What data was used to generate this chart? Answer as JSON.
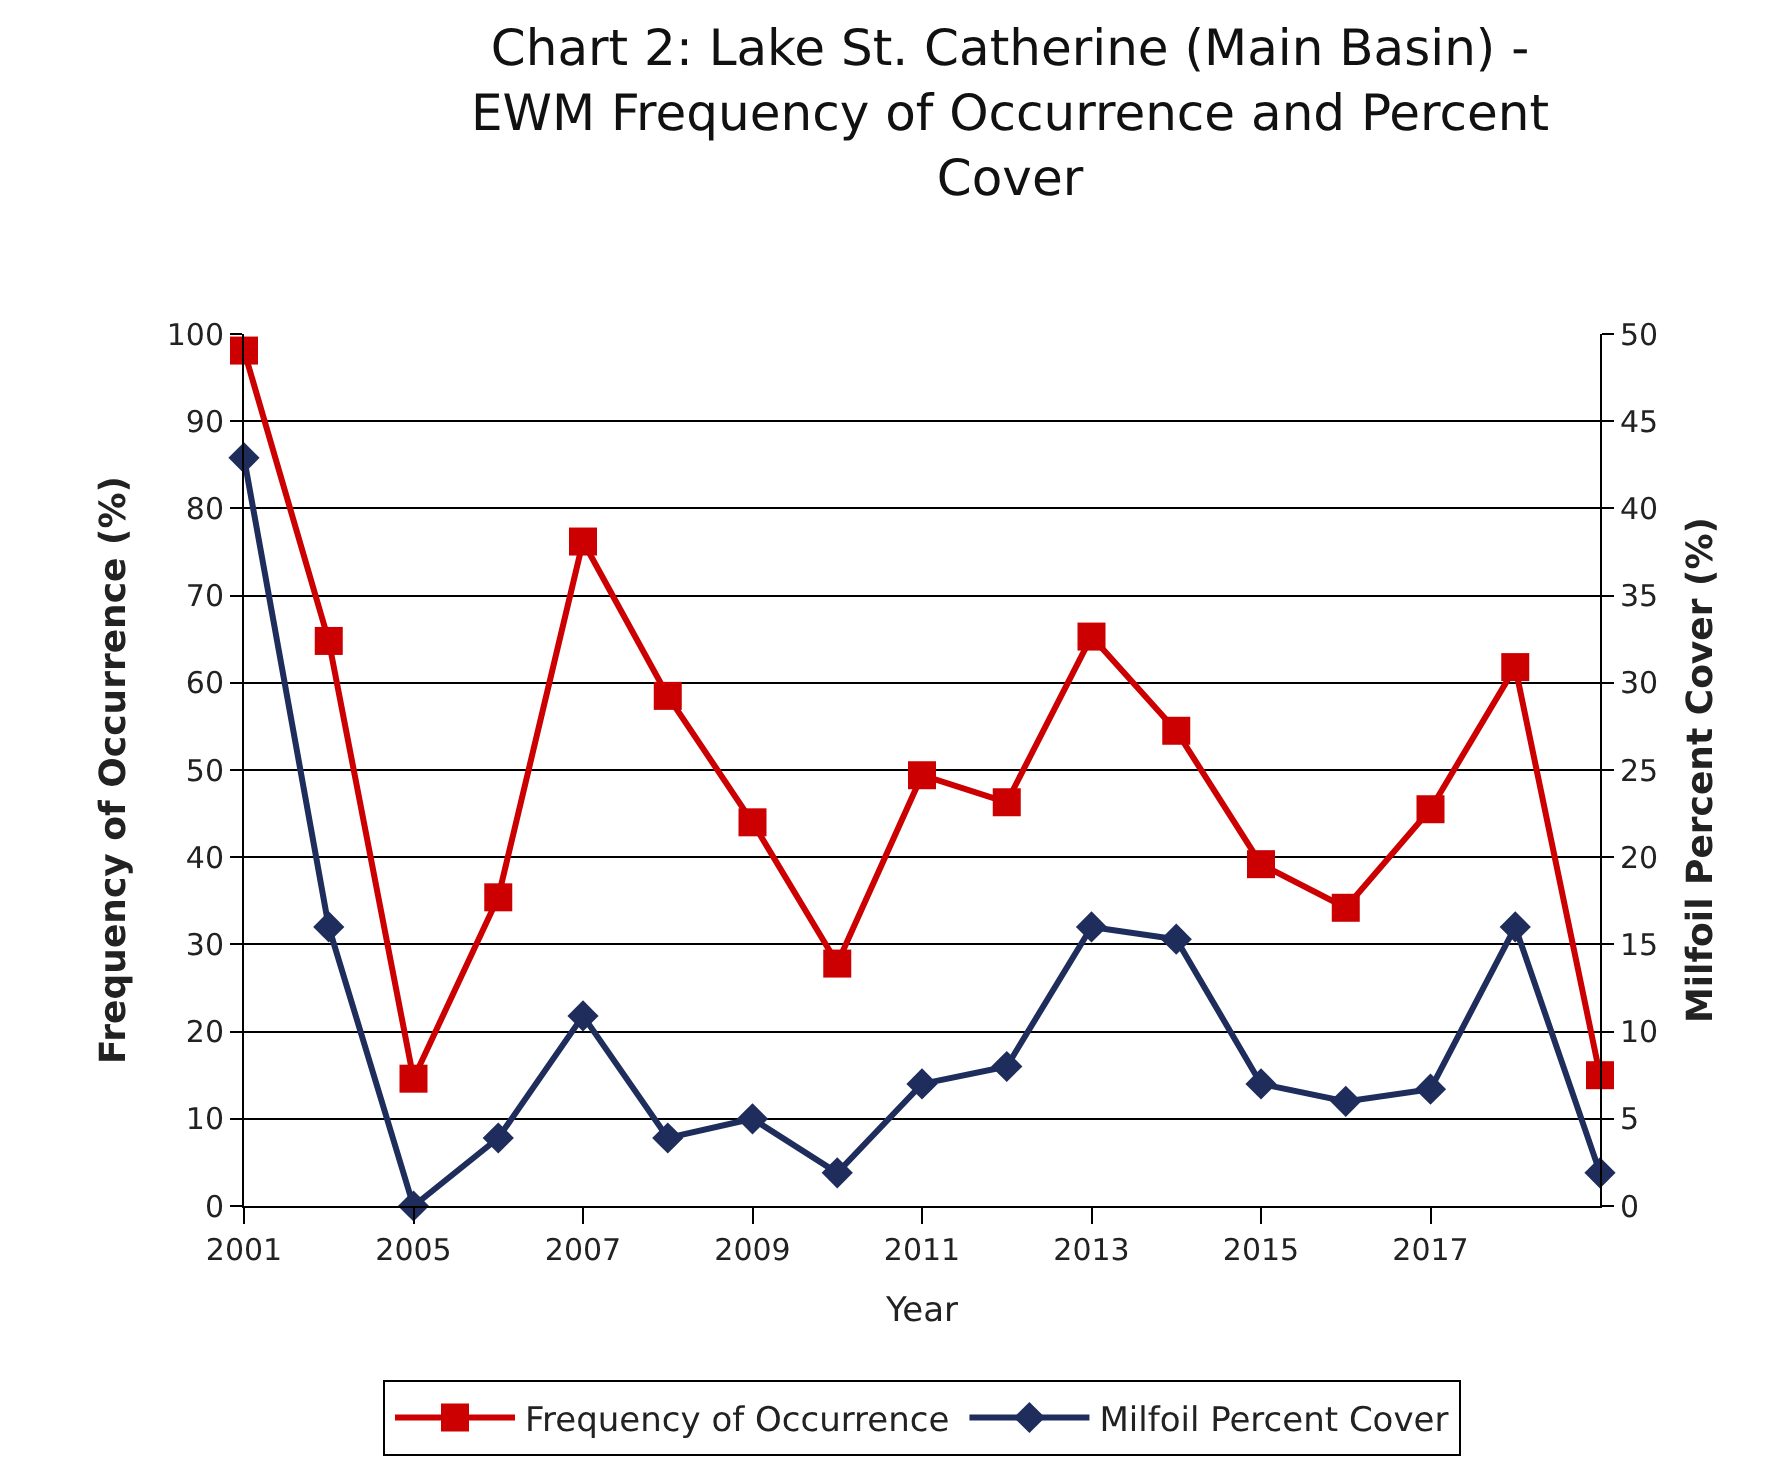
{
  "chart_data": {
    "type": "line",
    "title": "Chart 2: Lake St. Catherine (Main Basin) - EWM Frequency of Occurrence and Percent Cover",
    "xlabel": "Year",
    "ylabel": "Frequency of Occurrence (%)",
    "y2label": "Milfoil Percent Cover (%)",
    "categories": [
      "2001",
      null,
      "2005",
      null,
      "2007",
      null,
      "2009",
      null,
      "2011",
      null,
      "2013",
      null,
      "2015",
      null,
      "2017",
      null,
      null
    ],
    "series": [
      {
        "name": "Frequency of Occurrence",
        "color": "#cc0000",
        "marker": "square",
        "values": [
          98.1,
          64.8,
          14.6,
          35.4,
          76.2,
          58.5,
          44.0,
          27.8,
          49.4,
          46.3,
          65.3,
          54.5,
          39.2,
          34.2,
          45.5,
          61.8,
          15.0
        ]
      },
      {
        "name": "Milfoil Percent Cover",
        "color": "#1f2d5c",
        "marker": "diamond",
        "axis": "y2",
        "values": [
          42.9,
          16.0,
          0,
          3.9,
          10.9,
          3.9,
          5.0,
          1.9,
          7.0,
          8.0,
          16.0,
          15.3,
          7.0,
          6.0,
          6.7,
          16.0,
          1.9
        ]
      }
    ],
    "ylim": [
      0,
      100
    ],
    "yticks": [
      0,
      10,
      20,
      30,
      40,
      50,
      60,
      70,
      80,
      90,
      100
    ],
    "y2lim": [
      0,
      50
    ],
    "y2ticks": [
      0,
      5,
      10,
      15,
      20,
      25,
      30,
      35,
      40,
      45,
      50
    ],
    "grid": "y",
    "legend": "bottom",
    "line_style": "solid"
  }
}
